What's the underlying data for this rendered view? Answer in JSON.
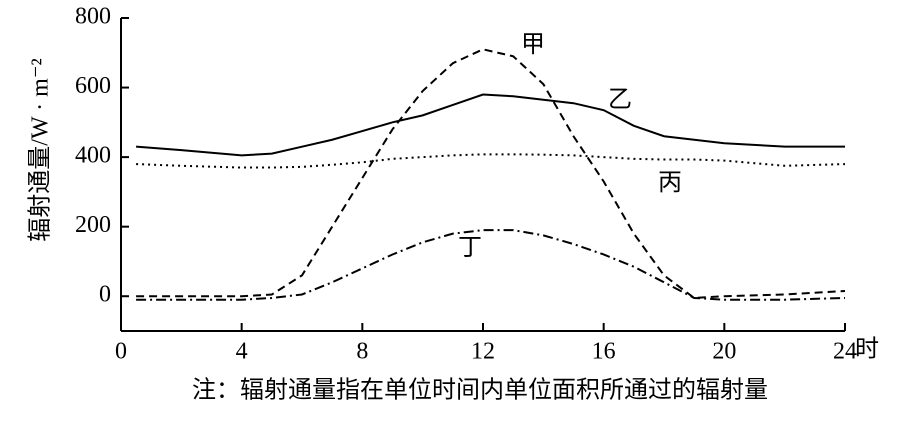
{
  "chart_data": {
    "type": "line",
    "ylabel": "辐射通量/W · m⁻²",
    "xunit": "时",
    "note": "注：辐射通量指在单位时间内单位面积所通过的辐射量",
    "x": [
      0.5,
      2,
      4,
      5,
      6,
      7,
      8,
      9,
      10,
      11,
      12,
      13,
      14,
      15,
      16,
      17,
      18,
      19,
      20,
      22,
      24
    ],
    "series": [
      {
        "name": "甲",
        "color": "#000000",
        "dash": "8,5",
        "values": [
          0,
          0,
          0,
          5,
          60,
          200,
          340,
          480,
          590,
          670,
          710,
          690,
          610,
          460,
          330,
          180,
          60,
          -5,
          0,
          5,
          15
        ]
      },
      {
        "name": "乙",
        "color": "#000000",
        "dash": "none",
        "values": [
          430,
          420,
          405,
          410,
          430,
          450,
          475,
          500,
          520,
          550,
          580,
          575,
          565,
          555,
          535,
          490,
          460,
          450,
          440,
          430,
          430
        ]
      },
      {
        "name": "丙",
        "color": "#000000",
        "dash": "2,4",
        "values": [
          380,
          375,
          370,
          370,
          372,
          378,
          385,
          395,
          400,
          405,
          408,
          408,
          407,
          405,
          400,
          395,
          393,
          393,
          390,
          375,
          380
        ]
      },
      {
        "name": "丁",
        "color": "#000000",
        "dash": "10,4,2,4",
        "values": [
          -10,
          -10,
          -10,
          -5,
          5,
          40,
          80,
          120,
          155,
          180,
          190,
          190,
          175,
          150,
          120,
          85,
          40,
          -5,
          -10,
          -10,
          -5
        ]
      }
    ],
    "xlim": [
      0,
      24
    ],
    "xticks": [
      0,
      4,
      8,
      12,
      16,
      20,
      24
    ],
    "ylim": [
      -100,
      800
    ],
    "yticks": [
      0,
      200,
      400,
      600,
      800
    ]
  }
}
